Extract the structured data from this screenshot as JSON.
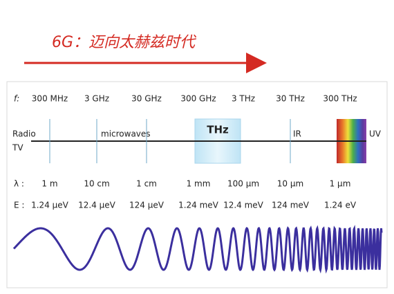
{
  "title": "6G：迈向太赫兹时代",
  "frequency": {
    "label": "f:",
    "values": [
      "300 MHz",
      "3 GHz",
      "30 GHz",
      "300 GHz",
      "3 THz",
      "30 THz",
      "300 THz"
    ]
  },
  "bands": {
    "radio": "Radio",
    "tv": "TV",
    "microwaves": "microwaves",
    "thz": "THz",
    "ir": "IR",
    "uv": "UV"
  },
  "wavelength": {
    "label": "λ :",
    "values": [
      "1 m",
      "10 cm",
      "1 cm",
      "1 mm",
      "100 μm",
      "10 μm",
      "1 μm"
    ]
  },
  "energy": {
    "label": "E :",
    "values": [
      "1.24 μeV",
      "12.4 μeV",
      "124 μeV",
      "1.24 meV",
      "12.4 meV",
      "124 meV",
      "1.24 eV"
    ]
  }
}
